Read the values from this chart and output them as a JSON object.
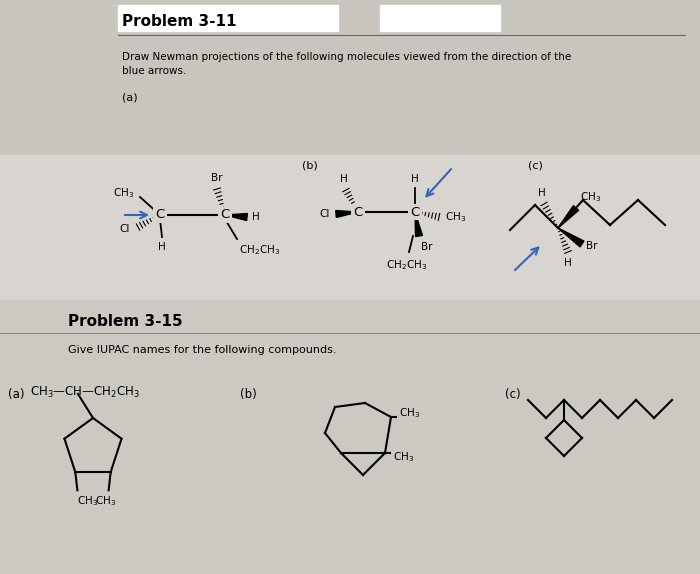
{
  "bg_top": "#c8c4be",
  "bg_mol": "#d8d4cf",
  "bg_bottom": "#ccc8c2",
  "title1": "Problem 3-11",
  "title2": "Problem 3-15",
  "desc1a": "Draw Newman projections of the following molecules viewed from the direction of the",
  "desc1b": "blue arrows.",
  "desc2": "Give IUPAC names for the following compounds.",
  "label_a1": "(a)",
  "label_b1": "(b)",
  "label_c1": "(c)",
  "label_a2": "(a)",
  "label_b2": "(b)",
  "label_c2": "(c)"
}
